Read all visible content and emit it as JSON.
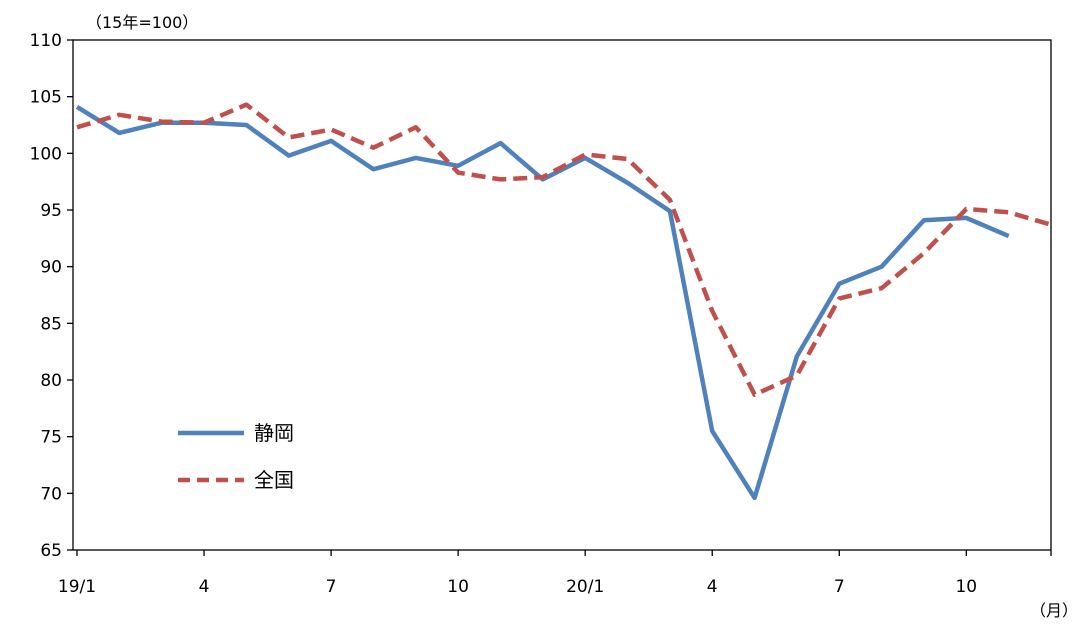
{
  "chart_data": {
    "type": "line",
    "y_unit_label": "（15年=100）",
    "x_unit_label": "（月）",
    "ylim": [
      65,
      110
    ],
    "y_ticks": [
      65,
      70,
      75,
      80,
      85,
      90,
      95,
      100,
      105,
      110
    ],
    "x_tick_labels": [
      "19/1",
      "4",
      "7",
      "10",
      "20/1",
      "4",
      "7",
      "10"
    ],
    "x_tick_positions": [
      0,
      3,
      6,
      9,
      12,
      15,
      18,
      21
    ],
    "grid": false,
    "legend_position": "bottom-left",
    "series": [
      {
        "name": "静岡",
        "style": "solid",
        "color": "#4f81bd",
        "values": [
          104.1,
          101.8,
          102.7,
          102.7,
          102.5,
          99.8,
          101.1,
          98.6,
          99.6,
          98.9,
          100.9,
          97.7,
          99.6,
          97.4,
          94.9,
          75.5,
          69.6,
          82.1,
          88.5,
          90.0,
          94.1,
          94.3,
          92.7
        ]
      },
      {
        "name": "全国",
        "style": "dashed",
        "color": "#c0504d",
        "values": [
          102.3,
          103.4,
          102.8,
          102.7,
          104.3,
          101.4,
          102.1,
          100.5,
          102.3,
          98.3,
          97.7,
          97.9,
          99.9,
          99.5,
          95.9,
          86.1,
          78.7,
          80.4,
          87.2,
          88.1,
          91.2,
          95.1,
          94.8,
          93.7
        ]
      }
    ]
  }
}
